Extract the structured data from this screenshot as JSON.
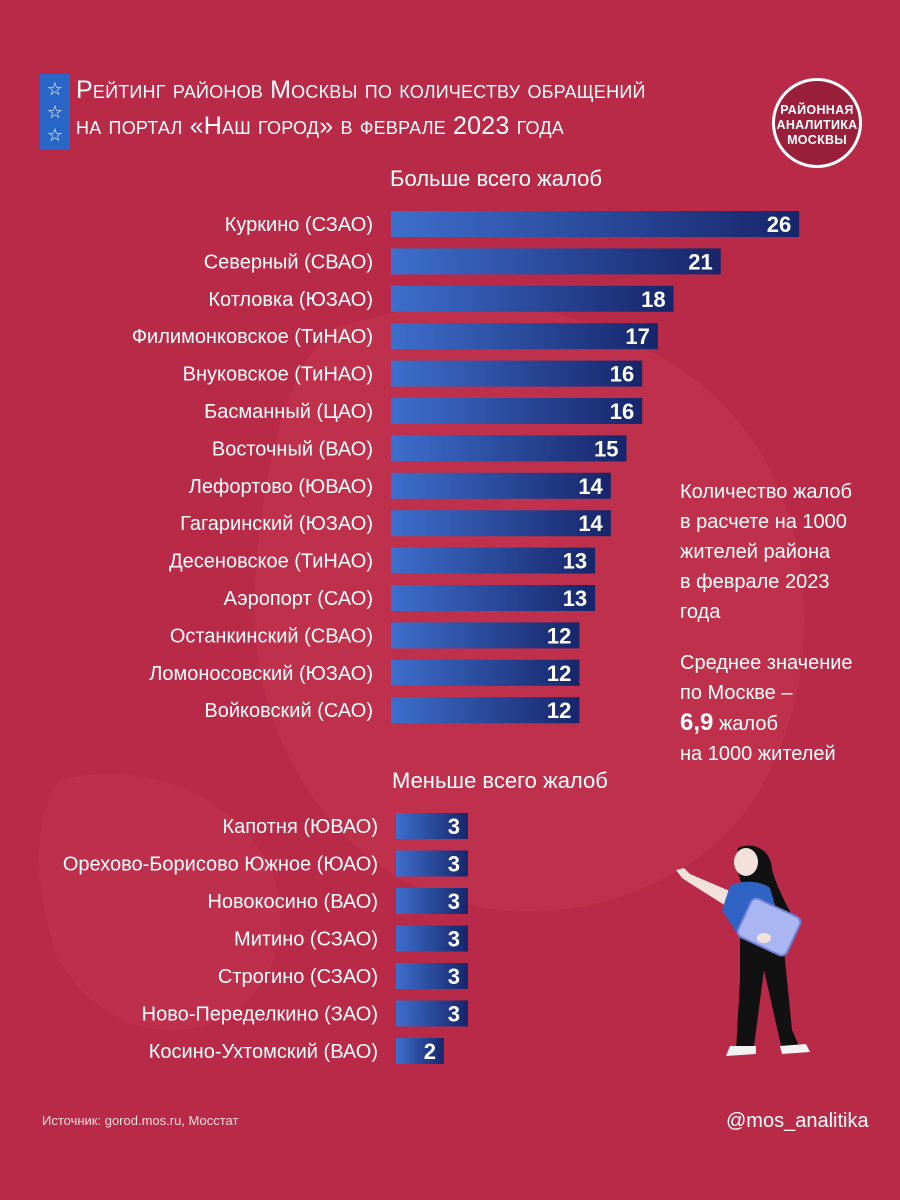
{
  "title": {
    "line1": "Рейтинг районов Москвы по количеству обращений",
    "line2": "на портал «Наш город» в феврале 2023 года"
  },
  "badge": {
    "line1": "РАЙОННАЯ",
    "line2": "АНАЛИТИКА",
    "line3": "МОСКВЫ"
  },
  "icons": {
    "stars": "star-icon",
    "figure": "woman-pointing-icon"
  },
  "colors": {
    "background": "#b82a48",
    "bar_dark": "#17256a",
    "bar_light": "#3d6fcc",
    "accent": "#2a66c8"
  },
  "note": {
    "line1": "Количество жалоб",
    "line2": "в расчете на 1000",
    "line3": "жителей района",
    "line4": "в феврале 2023",
    "line5": "года",
    "avg1": "Среднее значение",
    "avg2": "по Москве –",
    "avg_value": "6,9",
    "avg3": " жалоб",
    "avg4": "на 1000 жителей"
  },
  "source": "Источник: gorod.mos.ru, Мосстат",
  "handle": "@mos_analitika",
  "chart_data": [
    {
      "type": "bar",
      "orientation": "horizontal",
      "title": "Больше всего жалоб",
      "categories": [
        "Куркино (СЗАО)",
        "Северный (СВАО)",
        "Котловка (ЮЗАО)",
        "Филимонковское (ТиНАО)",
        "Внуковское (ТиНАО)",
        "Басманный (ЦАО)",
        "Восточный (ВАО)",
        "Лефортово (ЮВАО)",
        "Гагаринский (ЮЗАО)",
        "Десеновское (ТиНАО)",
        "Аэропорт (САО)",
        "Останкинский (СВАО)",
        "Ломоносовский (ЮЗАО)",
        "Войковский (САО)"
      ],
      "values": [
        26,
        21,
        18,
        17,
        16,
        16,
        15,
        14,
        14,
        13,
        13,
        12,
        12,
        12
      ],
      "grid": false
    },
    {
      "type": "bar",
      "orientation": "horizontal",
      "title": "Меньше всего жалоб",
      "categories": [
        "Капотня (ЮВАО)",
        "Орехово-Борисово Южное (ЮАО)",
        "Новокосино (ВАО)",
        "Митино (СЗАО)",
        "Строгино (СЗАО)",
        "Ново-Переделкино (ЗАО)",
        "Косино-Ухтомский (ВАО)"
      ],
      "values": [
        3,
        3,
        3,
        3,
        3,
        3,
        2
      ],
      "grid": false
    }
  ]
}
